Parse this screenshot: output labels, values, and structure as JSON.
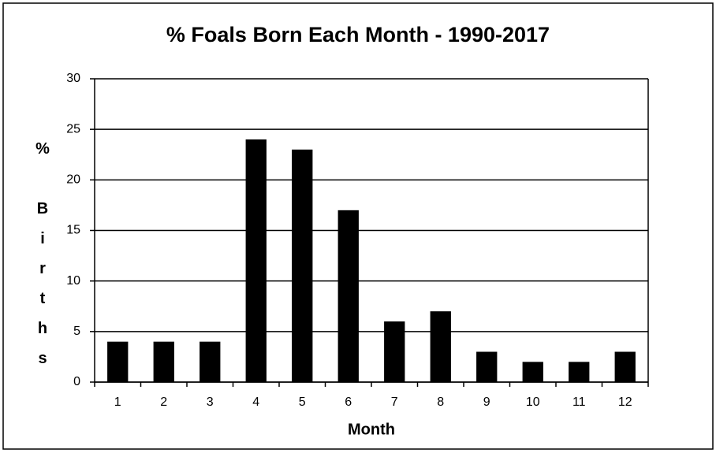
{
  "chart_data": {
    "type": "bar",
    "title": "% Foals Born Each Month - 1990-2017",
    "x_label": "Month",
    "y_label": "% Births",
    "categories": [
      "1",
      "2",
      "3",
      "4",
      "5",
      "6",
      "7",
      "8",
      "9",
      "10",
      "11",
      "12"
    ],
    "values": [
      4,
      4,
      4,
      24,
      23,
      17,
      6,
      7,
      3,
      2,
      2,
      3
    ],
    "color": "#000000",
    "ylim": [
      0,
      30
    ],
    "yticks": [
      0,
      5,
      10,
      15,
      20,
      25,
      30
    ],
    "grid": true
  }
}
